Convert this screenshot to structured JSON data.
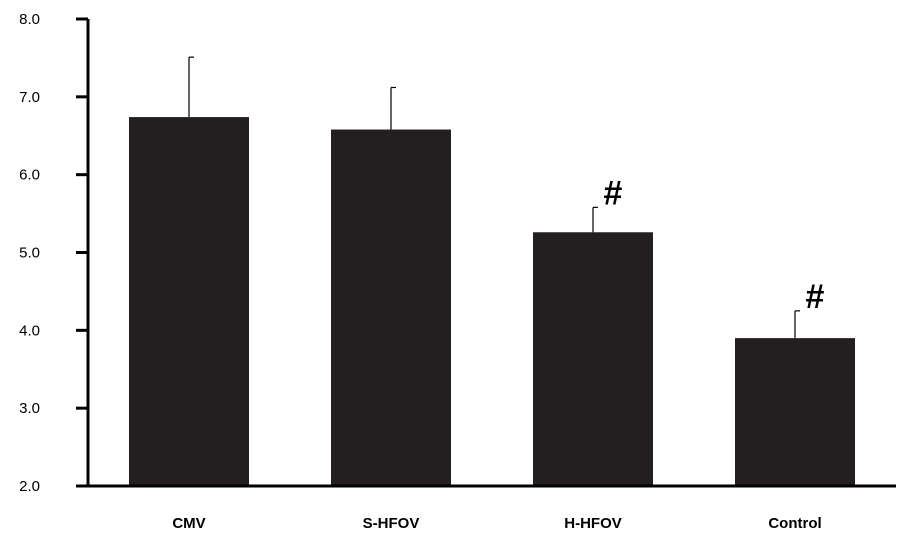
{
  "chart_data": {
    "type": "bar",
    "title": "",
    "xlabel": "",
    "ylabel": "",
    "categories": [
      "CMV",
      "S-HFOV",
      "H-HFOV",
      "Control"
    ],
    "values": [
      6.74,
      6.58,
      5.26,
      3.9
    ],
    "error_upper": [
      7.51,
      7.12,
      5.58,
      4.25
    ],
    "annotations": [
      "",
      "",
      "#",
      "#"
    ],
    "ylim": [
      2.0,
      8.0
    ],
    "yticks": [
      "2.0",
      "3.0",
      "4.0",
      "5.0",
      "6.0",
      "7.0",
      "8.0"
    ],
    "grid": false,
    "bar_color": "#231f20"
  }
}
